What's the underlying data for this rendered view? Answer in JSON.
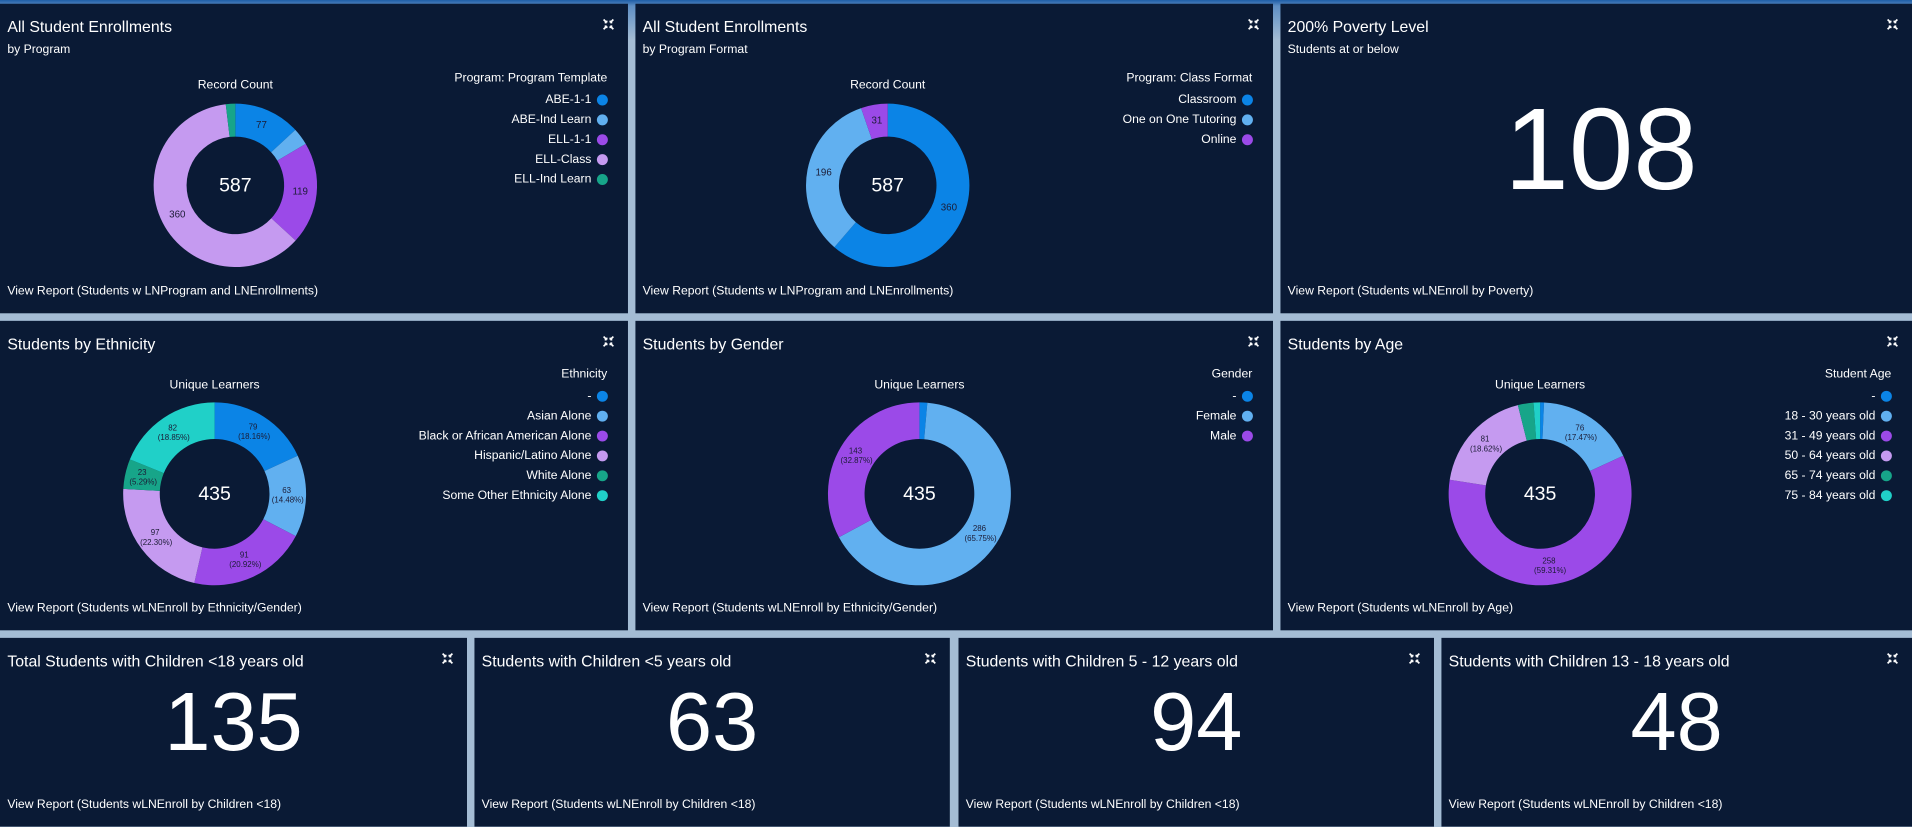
{
  "panels": [
    {
      "title": "All Student Enrollments",
      "subtitle": "by Program",
      "link": "View Report (Students w LNProgram and LNEnrollments)",
      "chart_data": {
        "type": "donut",
        "center_label": "Record Count",
        "total": 587,
        "legend_title": "Program: Program Template",
        "categories": [
          "ABE-1-1",
          "ABE-Ind Learn",
          "ELL-1-1",
          "ELL-Class",
          "ELL-Ind Learn"
        ],
        "values": [
          77,
          20,
          119,
          360,
          11
        ],
        "colors": [
          "#0b84e6",
          "#61b0f0",
          "#9b4ae8",
          "#c59af0",
          "#17a589"
        ]
      }
    },
    {
      "title": "All Student Enrollments",
      "subtitle": "by Program Format",
      "link": "View Report (Students w LNProgram and LNEnrollments)",
      "chart_data": {
        "type": "donut",
        "center_label": "Record Count",
        "total": 587,
        "legend_title": "Program: Class Format",
        "categories": [
          "Classroom",
          "One on One Tutoring",
          "Online"
        ],
        "values": [
          360,
          196,
          31
        ],
        "colors": [
          "#0b84e6",
          "#61b0f0",
          "#9b4ae8"
        ]
      }
    },
    {
      "title": "200% Poverty Level",
      "subtitle": "Students at or below",
      "link": "View Report (Students wLNEnroll by Poverty)",
      "metric": {
        "value": 108,
        "color": "#c8333a"
      }
    },
    {
      "title": "Students by Ethnicity",
      "link": "View Report (Students wLNEnroll by Ethnicity/Gender)",
      "chart_data": {
        "type": "donut",
        "center_label": "Unique Learners",
        "total": 435,
        "legend_title": "Ethnicity",
        "categories": [
          "-",
          "Asian Alone",
          "Black or African American Alone",
          "Hispanic/Latino Alone",
          "White Alone",
          "Some Other Ethnicity Alone"
        ],
        "values": [
          79,
          63,
          91,
          97,
          23,
          82
        ],
        "value_labels": [
          "79 (18.16%)",
          "63 (14.48%)",
          "91 (20.92%)",
          "97 (22.30%)",
          "23 (5.29%)",
          "82 (18.85%)"
        ],
        "colors": [
          "#0b84e6",
          "#61b0f0",
          "#9b4ae8",
          "#c59af0",
          "#17a589",
          "#20d0c8"
        ]
      }
    },
    {
      "title": "Students by Gender",
      "link": "View Report (Students wLNEnroll by Ethnicity/Gender)",
      "chart_data": {
        "type": "donut",
        "center_label": "Unique Learners",
        "total": 435,
        "legend_title": "Gender",
        "categories": [
          "-",
          "Female",
          "Male"
        ],
        "values": [
          6,
          286,
          143
        ],
        "value_labels": [
          null,
          "286 (65.75%)",
          "143 (32.87%)"
        ],
        "colors": [
          "#0b84e6",
          "#61b0f0",
          "#9b4ae8"
        ]
      }
    },
    {
      "title": "Students by Age",
      "link": "View Report (Students wLNEnroll by Age)",
      "chart_data": {
        "type": "donut",
        "center_label": "Unique Learners",
        "total": 435,
        "legend_title": "Student Age",
        "categories": [
          "-",
          "18 - 30 years old",
          "31 - 49 years old",
          "50 - 64 years old",
          "65 - 74 years old",
          "75 - 84 years old"
        ],
        "values": [
          3,
          76,
          258,
          81,
          12,
          5
        ],
        "value_labels": [
          null,
          "76 (17.47%)",
          "258 (59.31%)",
          "81 (18.62%)",
          null,
          null
        ],
        "colors": [
          "#0b84e6",
          "#61b0f0",
          "#9b4ae8",
          "#c59af0",
          "#17a589",
          "#20d0c8"
        ]
      }
    },
    {
      "title": "Total Students with Children <18 years old",
      "link": "View Report (Students wLNEnroll by Children <18)",
      "metric": {
        "value": 135,
        "color": "#0e6b5f"
      }
    },
    {
      "title": "Students with Children <5 years old",
      "link": "View Report (Students wLNEnroll by Children <18)",
      "metric": {
        "value": 63,
        "color": "#f5a35c"
      }
    },
    {
      "title": "Students with Children 5 - 12 years old",
      "link": "View Report (Students wLNEnroll by Children <18)",
      "metric": {
        "value": 94,
        "color": "#0e6b5f"
      }
    },
    {
      "title": "Students with Children 13 - 18 years old",
      "link": "View Report (Students wLNEnroll by Children <18)",
      "metric": {
        "value": 48,
        "color": "#f5a35c"
      }
    }
  ]
}
